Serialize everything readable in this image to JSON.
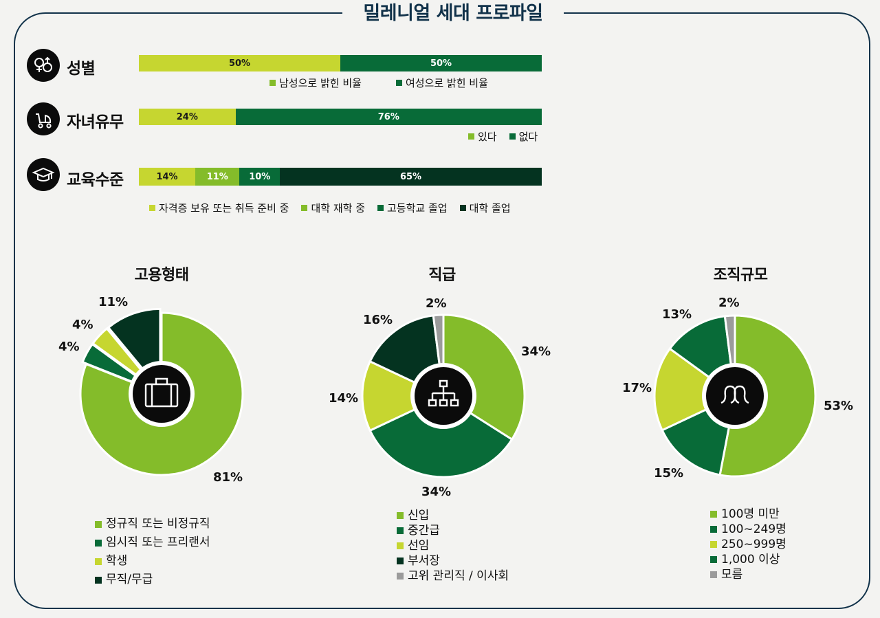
{
  "title": "밀레니얼 세대 프로파일",
  "colors": {
    "lime": "#c6d630",
    "green": "#84bc2a",
    "mid_green": "#086b38",
    "dark_green": "#043320",
    "gray": "#9b9b9b",
    "navy": "#11324a"
  },
  "rows": [
    {
      "label": "성별",
      "icon": "gender-icon",
      "segments": [
        {
          "value": "50%",
          "legend": "남성으로 밝힌 비율",
          "color": "#c6d630",
          "legend_color": "#84bc2a",
          "pct": 50
        },
        {
          "value": "50%",
          "legend": "여성으로 밝힌 비율",
          "color": "#086b38",
          "legend_color": "#086b38",
          "pct": 50
        }
      ]
    },
    {
      "label": "자녀유무",
      "icon": "stroller-icon",
      "segments": [
        {
          "value": "24%",
          "legend": "있다",
          "color": "#c6d630",
          "legend_color": "#84bc2a",
          "pct": 24
        },
        {
          "value": "76%",
          "legend": "없다",
          "color": "#086b38",
          "legend_color": "#086b38",
          "pct": 76
        }
      ]
    },
    {
      "label": "교육수준",
      "icon": "graduation-cap-icon",
      "segments": [
        {
          "value": "14%",
          "legend": "자격증 보유 또는 취득 준비 중",
          "color": "#c6d630",
          "legend_color": "#c6d630",
          "pct": 14
        },
        {
          "value": "11%",
          "legend": "대학 재학 중",
          "color": "#84bc2a",
          "legend_color": "#84bc2a",
          "pct": 11
        },
        {
          "value": "10%",
          "legend": "고등학교 졸업",
          "color": "#086b38",
          "legend_color": "#086b38",
          "pct": 10
        },
        {
          "value": "65%",
          "legend": "대학 졸업",
          "color": "#043320",
          "legend_color": "#043320",
          "pct": 65
        }
      ]
    }
  ],
  "pies": [
    {
      "title": "고용형태",
      "icon": "briefcase-icon",
      "slices": [
        {
          "label": "정규직 또는 비정규직",
          "value": 81,
          "text": "81%",
          "color": "#84bc2a"
        },
        {
          "label": "임시직 또는 프리랜서",
          "value": 4,
          "text": "4%",
          "color": "#086b38"
        },
        {
          "label": "학생",
          "value": 4,
          "text": "4%",
          "color": "#c6d630"
        },
        {
          "label": "무직/무급",
          "value": 11,
          "text": "11%",
          "color": "#043320"
        }
      ]
    },
    {
      "title": "직급",
      "icon": "org-chart-icon",
      "slices": [
        {
          "label": "신입",
          "value": 34,
          "text": "34%",
          "color": "#84bc2a"
        },
        {
          "label": "중간급",
          "value": 34,
          "text": "34%",
          "color": "#086b38"
        },
        {
          "label": "선임",
          "value": 14,
          "text": "14%",
          "color": "#c6d630"
        },
        {
          "label": "부서장",
          "value": 16,
          "text": "16%",
          "color": "#043320"
        },
        {
          "label": "고위 관리직 / 이사회",
          "value": 2,
          "text": "2%",
          "color": "#9b9b9b"
        }
      ]
    },
    {
      "title": "조직규모",
      "icon": "people-icon",
      "slices": [
        {
          "label": "100명 미만",
          "value": 53,
          "text": "53%",
          "color": "#84bc2a"
        },
        {
          "label": "100~249명",
          "value": 15,
          "text": "15%",
          "color": "#086b38"
        },
        {
          "label": "250~999명",
          "value": 17,
          "text": "17%",
          "color": "#c6d630"
        },
        {
          "label": "1,000 이상",
          "value": 13,
          "text": "13%",
          "color": "#086b38"
        },
        {
          "label": "모름",
          "value": 2,
          "text": "2%",
          "color": "#9b9b9b"
        }
      ]
    }
  ],
  "chart_data": [
    {
      "type": "bar",
      "title": "성별",
      "categories": [
        "남성으로 밝힌 비율",
        "여성으로 밝힌 비율"
      ],
      "values": [
        50,
        50
      ],
      "unit": "%"
    },
    {
      "type": "bar",
      "title": "자녀유무",
      "categories": [
        "있다",
        "없다"
      ],
      "values": [
        24,
        76
      ],
      "unit": "%"
    },
    {
      "type": "bar",
      "title": "교육수준",
      "categories": [
        "자격증 보유 또는 취득 준비 중",
        "대학 재학 중",
        "고등학교 졸업",
        "대학 졸업"
      ],
      "values": [
        14,
        11,
        10,
        65
      ],
      "unit": "%"
    },
    {
      "type": "pie",
      "title": "고용형태",
      "categories": [
        "정규직 또는 비정규직",
        "임시직 또는 프리랜서",
        "학생",
        "무직/무급"
      ],
      "values": [
        81,
        4,
        4,
        11
      ],
      "unit": "%"
    },
    {
      "type": "pie",
      "title": "직급",
      "categories": [
        "신입",
        "중간급",
        "선임",
        "부서장",
        "고위 관리직 / 이사회"
      ],
      "values": [
        34,
        34,
        14,
        16,
        2
      ],
      "unit": "%"
    },
    {
      "type": "pie",
      "title": "조직규모",
      "categories": [
        "100명 미만",
        "100~249명",
        "250~999명",
        "1,000 이상",
        "모름"
      ],
      "values": [
        53,
        15,
        17,
        13,
        2
      ],
      "unit": "%"
    }
  ]
}
